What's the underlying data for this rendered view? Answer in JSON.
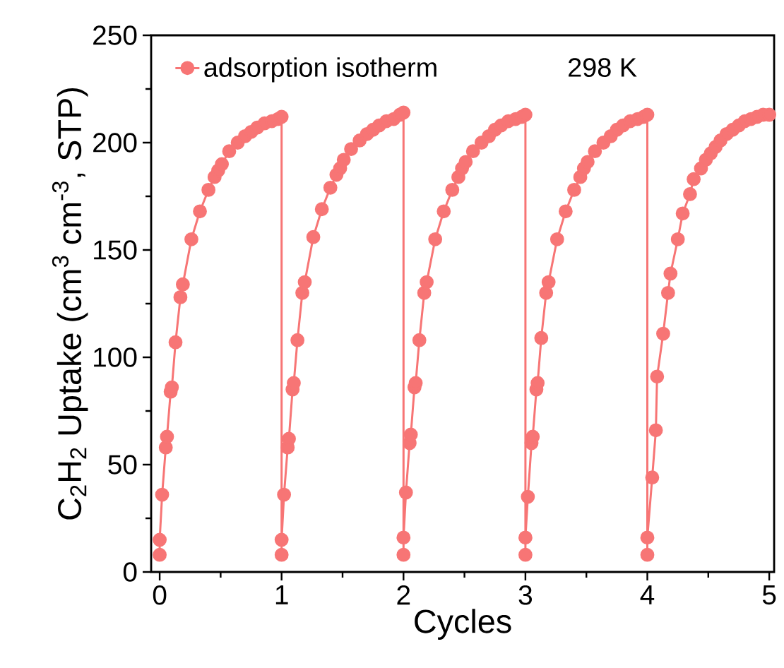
{
  "chart_data": {
    "type": "line",
    "xlabel": "Cycles",
    "ylabel": "C$_{2}$H$_{2}$ Uptake (cm$^{3}$ cm$^{-3}$, STP)",
    "x": [
      0,
      0,
      0.02,
      0.05,
      0.06,
      0.09,
      0.1,
      0.13,
      0.17,
      0.19,
      0.26,
      0.33,
      0.4,
      0.45,
      0.48,
      0.51,
      0.57,
      0.64,
      0.7,
      0.75,
      0.8,
      0.86,
      0.92,
      0.97,
      1.0,
      1,
      1,
      1.02,
      1.05,
      1.06,
      1.09,
      1.1,
      1.13,
      1.17,
      1.19,
      1.26,
      1.33,
      1.4,
      1.45,
      1.48,
      1.51,
      1.57,
      1.64,
      1.7,
      1.75,
      1.8,
      1.86,
      1.92,
      1.97,
      2.0,
      2,
      2,
      2.02,
      2.05,
      2.06,
      2.09,
      2.1,
      2.13,
      2.17,
      2.19,
      2.26,
      2.33,
      2.4,
      2.45,
      2.48,
      2.51,
      2.57,
      2.64,
      2.7,
      2.75,
      2.8,
      2.86,
      2.92,
      2.97,
      3.0,
      3,
      3,
      3.02,
      3.05,
      3.06,
      3.09,
      3.1,
      3.13,
      3.17,
      3.19,
      3.26,
      3.33,
      3.4,
      3.45,
      3.48,
      3.51,
      3.57,
      3.64,
      3.7,
      3.75,
      3.8,
      3.86,
      3.92,
      3.97,
      4.0,
      4,
      4,
      4.04,
      4.07,
      4.08,
      4.13,
      4.17,
      4.19,
      4.25,
      4.29,
      4.35,
      4.38,
      4.44,
      4.48,
      4.52,
      4.56,
      4.6,
      4.65,
      4.7,
      4.75,
      4.8,
      4.85,
      4.9,
      4.95,
      5.0
    ],
    "series": [
      {
        "name": "adsorption isotherm",
        "color": "#f77575",
        "values": [
          8,
          15,
          36,
          58,
          63,
          84,
          86,
          107,
          128,
          134,
          155,
          168,
          178,
          184,
          187,
          190,
          196,
          200,
          203,
          205,
          207,
          209,
          210,
          211,
          212,
          8,
          15,
          36,
          58,
          62,
          85,
          88,
          108,
          130,
          135,
          156,
          169,
          179,
          185,
          188,
          192,
          197,
          201,
          204,
          206,
          208,
          210,
          211,
          213,
          214,
          8,
          16,
          37,
          60,
          64,
          86,
          88,
          108,
          130,
          135,
          155,
          168,
          178,
          184,
          188,
          191,
          196,
          200,
          203,
          206,
          208,
          210,
          211,
          212,
          213,
          8,
          16,
          35,
          60,
          63,
          85,
          88,
          109,
          130,
          135,
          155,
          168,
          178,
          184,
          188,
          191,
          196,
          200,
          203,
          206,
          208,
          210,
          211,
          212,
          213,
          8,
          16,
          44,
          66,
          91,
          111,
          130,
          139,
          155,
          167,
          176,
          183,
          188,
          192,
          195,
          198,
          201,
          204,
          206,
          208,
          210,
          211,
          212,
          213,
          213
        ]
      }
    ],
    "xlim": [
      -0.07,
      5.04
    ],
    "ylim": [
      0,
      250
    ],
    "xticks": [
      0,
      1,
      2,
      3,
      4,
      5
    ],
    "yticks": [
      0,
      50,
      100,
      150,
      200,
      250
    ],
    "marker": "circle",
    "legend": "top left",
    "annotations": [
      "298 K"
    ]
  }
}
